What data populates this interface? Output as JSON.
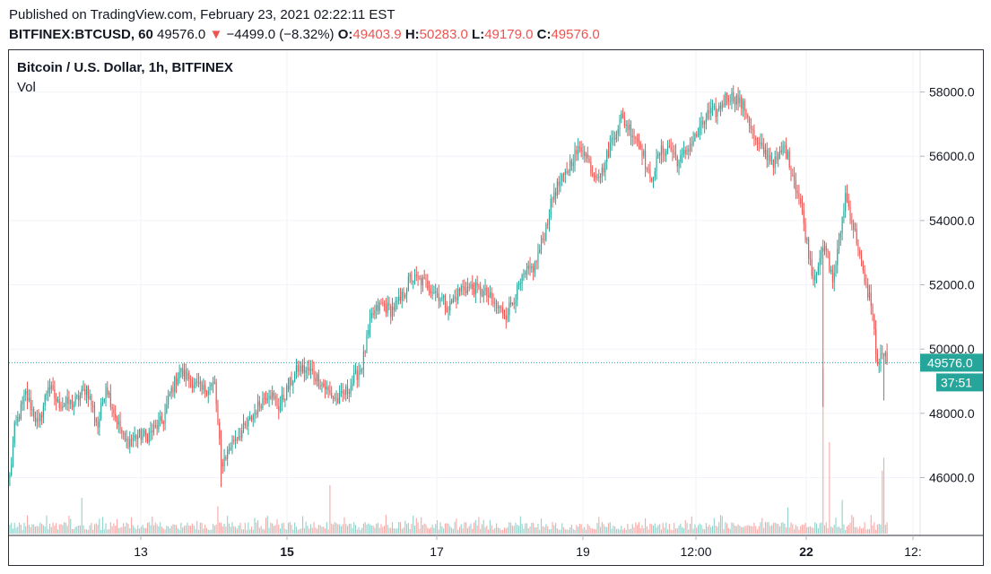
{
  "header": {
    "published": "Published on TradingView.com, February 23, 2021 02:22:11 EST",
    "symbol": "BITFINEX:BTCUSD, 60",
    "last": "49576.0",
    "arrow": "▼",
    "change": "−4499.0 (−8.32%)",
    "o_label": "O:",
    "o_value": "49403.9",
    "h_label": "H:",
    "h_value": "50283.0",
    "l_label": "L:",
    "l_value": "49179.0",
    "c_label": "C:",
    "c_value": "49576.0"
  },
  "legend": {
    "title": "Bitcoin / U.S. Dollar, 1h, BITFINEX",
    "vol": "Vol"
  },
  "colors": {
    "up": "#26a69a",
    "down": "#ef5350",
    "up_vol": "#93d2cc",
    "down_vol": "#f7a9a7",
    "grid": "#f0f3fa",
    "price_badge": "#26a69a",
    "axis_text": "#131722"
  },
  "chart_data": {
    "type": "candlestick",
    "title": "Bitcoin / U.S. Dollar, 1h, BITFINEX",
    "ylim": [
      44200,
      59300
    ],
    "y_ticks": [
      "46000.0",
      "48000.0",
      "50000.0",
      "52000.0",
      "54000.0",
      "56000.0",
      "58000.0"
    ],
    "y_tick_values": [
      46000,
      48000,
      50000,
      52000,
      54000,
      56000,
      58000
    ],
    "x_ticks": [
      "13",
      "15",
      "17",
      "19",
      "12:00",
      "22",
      "12:"
    ],
    "x_ticks_bold": [
      "15",
      "22"
    ],
    "last_price": "49576.0",
    "countdown": "37:51",
    "grid": true,
    "anchors": [
      [
        0,
        46000
      ],
      [
        3,
        47500
      ],
      [
        10,
        48600
      ],
      [
        18,
        47600
      ],
      [
        24,
        48900
      ],
      [
        30,
        48300
      ],
      [
        40,
        48300
      ],
      [
        48,
        48800
      ],
      [
        55,
        47600
      ],
      [
        60,
        48900
      ],
      [
        66,
        47900
      ],
      [
        72,
        47100
      ],
      [
        80,
        47300
      ],
      [
        86,
        47300
      ],
      [
        96,
        47800
      ],
      [
        100,
        48600
      ],
      [
        106,
        49300
      ],
      [
        112,
        49100
      ],
      [
        120,
        48700
      ],
      [
        128,
        48900
      ],
      [
        132,
        46400
      ],
      [
        140,
        47200
      ],
      [
        148,
        47600
      ],
      [
        156,
        48300
      ],
      [
        162,
        48700
      ],
      [
        168,
        48200
      ],
      [
        174,
        48800
      ],
      [
        180,
        49400
      ],
      [
        188,
        49300
      ],
      [
        194,
        49000
      ],
      [
        200,
        48600
      ],
      [
        205,
        48400
      ],
      [
        212,
        48800
      ],
      [
        220,
        49500
      ],
      [
        226,
        51000
      ],
      [
        232,
        51400
      ],
      [
        238,
        51200
      ],
      [
        244,
        51500
      ],
      [
        250,
        52200
      ],
      [
        258,
        52100
      ],
      [
        266,
        51800
      ],
      [
        274,
        51300
      ],
      [
        282,
        51900
      ],
      [
        290,
        51900
      ],
      [
        298,
        51700
      ],
      [
        304,
        51300
      ],
      [
        310,
        51100
      ],
      [
        316,
        51700
      ],
      [
        322,
        52300
      ],
      [
        328,
        52600
      ],
      [
        334,
        53600
      ],
      [
        340,
        54900
      ],
      [
        346,
        55300
      ],
      [
        352,
        56000
      ],
      [
        358,
        56300
      ],
      [
        364,
        55500
      ],
      [
        370,
        55500
      ],
      [
        376,
        56500
      ],
      [
        382,
        57200
      ],
      [
        388,
        56800
      ],
      [
        394,
        56400
      ],
      [
        400,
        55200
      ],
      [
        406,
        56100
      ],
      [
        412,
        56300
      ],
      [
        418,
        55800
      ],
      [
        424,
        56300
      ],
      [
        430,
        56700
      ],
      [
        436,
        57300
      ],
      [
        442,
        57400
      ],
      [
        448,
        57900
      ],
      [
        454,
        57800
      ],
      [
        460,
        57400
      ],
      [
        466,
        56400
      ],
      [
        472,
        56100
      ],
      [
        478,
        55800
      ],
      [
        484,
        56300
      ],
      [
        490,
        55300
      ],
      [
        494,
        54500
      ],
      [
        498,
        53300
      ],
      [
        502,
        52200
      ],
      [
        506,
        52900
      ],
      [
        510,
        53100
      ],
      [
        514,
        52100
      ],
      [
        518,
        53300
      ],
      [
        522,
        54800
      ],
      [
        526,
        54000
      ],
      [
        530,
        53200
      ],
      [
        534,
        52000
      ],
      [
        538,
        51500
      ],
      [
        542,
        49500
      ],
      [
        546,
        49900
      ],
      [
        548,
        49576
      ]
    ],
    "volume_spikes": [
      [
        45,
        6
      ],
      [
        130,
        5
      ],
      [
        200,
        7
      ],
      [
        508,
        20
      ],
      [
        512,
        10
      ],
      [
        545,
        8
      ],
      [
        546,
        6
      ],
      [
        486,
        3
      ],
      [
        520,
        3
      ]
    ]
  }
}
